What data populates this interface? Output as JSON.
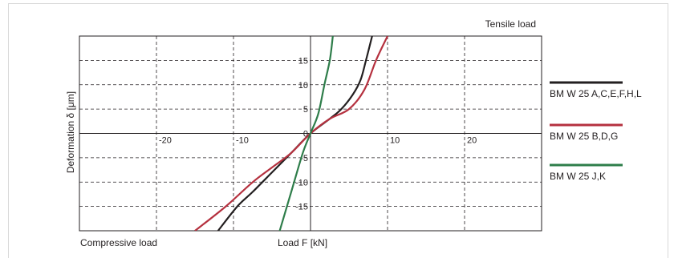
{
  "chart_data": {
    "type": "line",
    "corner_labels": {
      "top_right": "Tensile load",
      "bottom_left": "Compressive load"
    },
    "xlabel": "Load F [kN]",
    "ylabel": "Deformation  δ [μm]",
    "xlim": [
      -30,
      30
    ],
    "ylim": [
      -20,
      20
    ],
    "x_ticks": [
      -20,
      -10,
      10,
      20
    ],
    "y_ticks": [
      15,
      10,
      5,
      0,
      -5,
      -10,
      -15
    ],
    "grid": true,
    "legend_position": "right",
    "series": [
      {
        "name": "BM W 25 A,C,E,F,H,L",
        "color": "#231f20",
        "points": [
          [
            -12,
            -20
          ],
          [
            -9.5,
            -15
          ],
          [
            -7.5,
            -12
          ],
          [
            -5,
            -8
          ],
          [
            -2.5,
            -4
          ],
          [
            0,
            0
          ],
          [
            2.5,
            3
          ],
          [
            4,
            5
          ],
          [
            5.5,
            8
          ],
          [
            6.5,
            11
          ],
          [
            7.2,
            15
          ],
          [
            8,
            20
          ]
        ]
      },
      {
        "name": "BM W 25 B,D,G",
        "color": "#b5313f",
        "points": [
          [
            -15,
            -20
          ],
          [
            -11,
            -15
          ],
          [
            -7.5,
            -10
          ],
          [
            -5,
            -7
          ],
          [
            -2.5,
            -4
          ],
          [
            0,
            0
          ],
          [
            2.5,
            3
          ],
          [
            5,
            5
          ],
          [
            7,
            9
          ],
          [
            8.5,
            15
          ],
          [
            10,
            20
          ]
        ]
      },
      {
        "name": "BM W 25 J,K",
        "color": "#2e7d4a",
        "points": [
          [
            -4,
            -20
          ],
          [
            -2.5,
            -12
          ],
          [
            -1,
            -4
          ],
          [
            0,
            0
          ],
          [
            1,
            4
          ],
          [
            1.8,
            10
          ],
          [
            2.5,
            15
          ],
          [
            2.9,
            20
          ]
        ]
      }
    ]
  }
}
